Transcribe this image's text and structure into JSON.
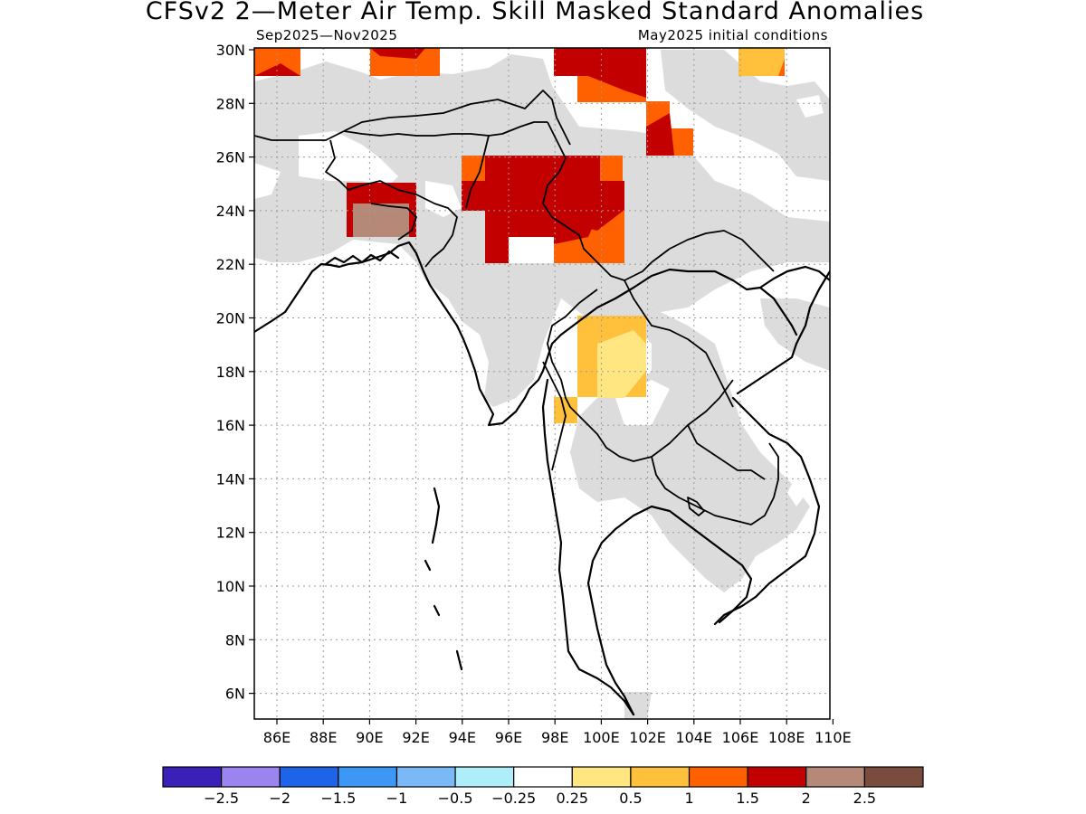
{
  "title": "CFSv2 2—Meter Air Temp. Skill Masked Standard Anomalies",
  "subtitle_left": "Sep2025—Nov2025",
  "subtitle_right": "May2025 initial conditions",
  "lat_ticks": [
    "30N",
    "28N",
    "26N",
    "24N",
    "22N",
    "20N",
    "18N",
    "16N",
    "14N",
    "12N",
    "10N",
    "8N",
    "6N"
  ],
  "lon_ticks": [
    "86E",
    "88E",
    "90E",
    "92E",
    "94E",
    "96E",
    "98E",
    "100E",
    "102E",
    "104E",
    "106E",
    "108E",
    "110E"
  ],
  "colorbar": {
    "colors": [
      "#3a1fb8",
      "#9b84f0",
      "#1e64e8",
      "#3d97f5",
      "#7ab8f8",
      "#aeeef8",
      "#ffffff",
      "#ffe680",
      "#ffc03c",
      "#ff6000",
      "#c30000",
      "#b58878",
      "#7a4c3e"
    ],
    "labels": [
      "−2.5",
      "−2",
      "−1.5",
      "−1",
      "−0.5",
      "−0.25",
      "0.25",
      "0.5",
      "1",
      "1.5",
      "2",
      "2.5"
    ]
  },
  "colors": {
    "masked_gray": "#dcdcdc",
    "background": "#ffffff"
  }
}
